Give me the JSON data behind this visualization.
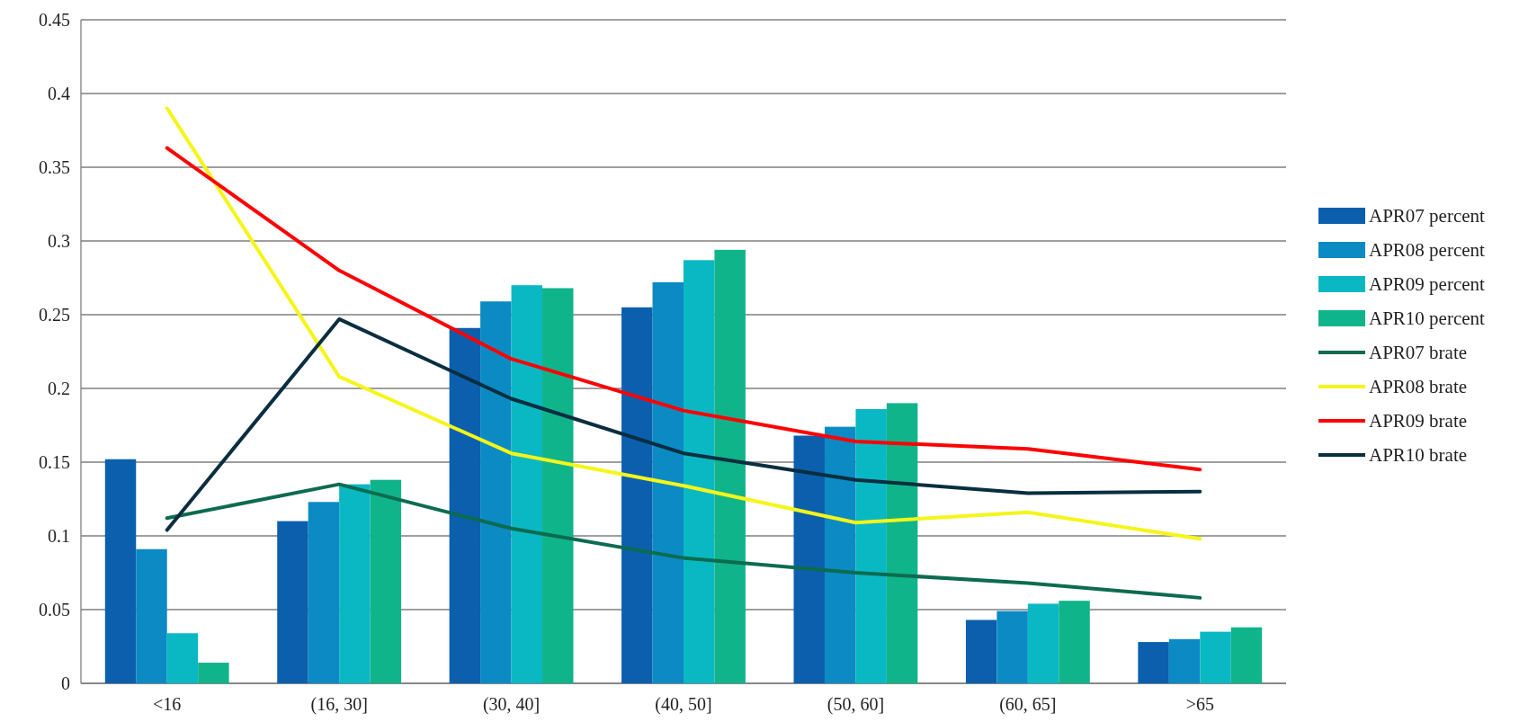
{
  "chart_data": {
    "type": "bar",
    "categories": [
      "<16",
      "(16, 30]",
      "(30, 40]",
      "(40, 50]",
      "(50, 60]",
      "(60, 65]",
      ">65"
    ],
    "series": [
      {
        "name": "APR07 percent",
        "color": "#0c5fad",
        "values": [
          0.152,
          0.11,
          0.241,
          0.255,
          0.168,
          0.043,
          0.028
        ]
      },
      {
        "name": "APR08 percent",
        "color": "#0b8ac4",
        "values": [
          0.091,
          0.123,
          0.259,
          0.272,
          0.174,
          0.049,
          0.03
        ]
      },
      {
        "name": "APR09 percent",
        "color": "#0ab8c4",
        "values": [
          0.034,
          0.135,
          0.27,
          0.287,
          0.186,
          0.054,
          0.035
        ]
      },
      {
        "name": "APR10 percent",
        "color": "#10b48a",
        "values": [
          0.014,
          0.138,
          0.268,
          0.294,
          0.19,
          0.056,
          0.038
        ]
      },
      {
        "name": "APR07 brate",
        "type": "line",
        "color": "#0d6b4f",
        "values": [
          0.112,
          0.135,
          0.105,
          0.085,
          0.075,
          0.068,
          0.058
        ]
      },
      {
        "name": "APR08 brate",
        "type": "line",
        "color": "#f5f51a",
        "values": [
          0.39,
          0.208,
          0.156,
          0.134,
          0.109,
          0.116,
          0.098
        ]
      },
      {
        "name": "APR09 brate",
        "type": "line",
        "color": "#ff0000",
        "values": [
          0.363,
          0.28,
          0.22,
          0.185,
          0.164,
          0.159,
          0.145
        ]
      },
      {
        "name": "APR10 brate",
        "type": "line",
        "color": "#0a2e3f",
        "values": [
          0.104,
          0.247,
          0.193,
          0.156,
          0.138,
          0.129,
          0.13
        ]
      }
    ],
    "ylim": [
      0,
      0.45
    ],
    "yticks": [
      0,
      0.05,
      0.1,
      0.15,
      0.2,
      0.25,
      0.3,
      0.35,
      0.4,
      0.45
    ],
    "grid": "y",
    "legend": "right"
  }
}
